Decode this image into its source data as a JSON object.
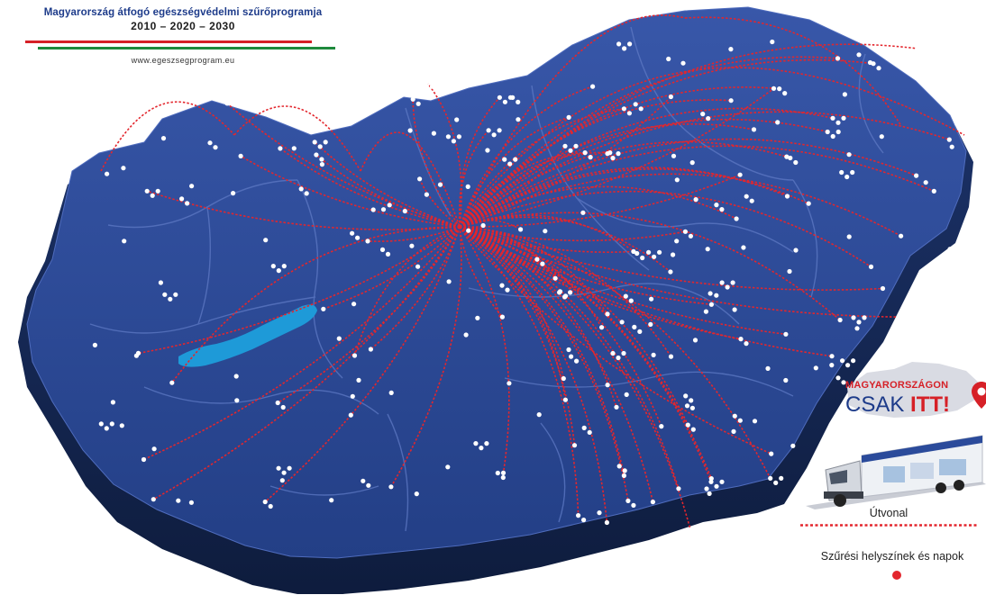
{
  "header": {
    "title": "Magyarország átfogó egészségvédelmi szűrőprogramja",
    "years": "2010 – 2020 – 2030",
    "url": "www.egeszsegprogram.eu"
  },
  "legend": {
    "logo_line1": "MAGYARORSZÁGON",
    "logo_line2a": "CSAK ",
    "logo_line2b": "ITT!",
    "route_label": "Útvonal",
    "sites_label": "Szűrési helyszínek és napok"
  },
  "colors": {
    "map_fill": "#2b4b9b",
    "map_side": "#14264f",
    "route": "#e3262d",
    "lake": "#1e9ad8",
    "site": "#ffffff",
    "brand_blue": "#1d3b8a",
    "flag_red": "#d62027",
    "flag_green": "#1e8a3c"
  },
  "icons": {
    "location": "map-pin-icon",
    "truck": "screening-truck-icon"
  }
}
